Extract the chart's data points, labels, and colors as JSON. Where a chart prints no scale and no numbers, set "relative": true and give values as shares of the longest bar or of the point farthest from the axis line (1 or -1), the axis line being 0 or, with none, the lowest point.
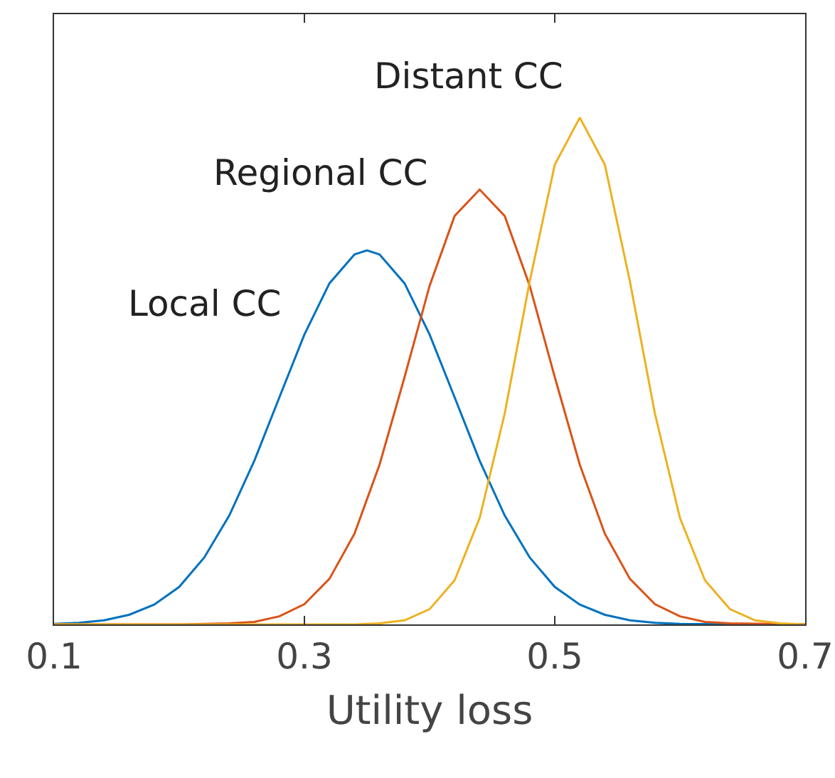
{
  "chart_data": {
    "type": "line",
    "relative": true,
    "xlabel": "Utility loss",
    "xlim": [
      0.1,
      0.7
    ],
    "xticks": [
      0.1,
      0.3,
      0.5,
      0.7
    ],
    "series": [
      {
        "name": "Local CC",
        "color": "#0072bd",
        "x": [
          0.1,
          0.12,
          0.14,
          0.16,
          0.18,
          0.2,
          0.22,
          0.24,
          0.26,
          0.28,
          0.3,
          0.32,
          0.34,
          0.35,
          0.36,
          0.38,
          0.4,
          0.42,
          0.44,
          0.46,
          0.48,
          0.5,
          0.52,
          0.54,
          0.56,
          0.58,
          0.6,
          0.65,
          0.7
        ],
        "values": [
          0.001,
          0.003,
          0.008,
          0.019,
          0.039,
          0.074,
          0.132,
          0.215,
          0.323,
          0.448,
          0.572,
          0.673,
          0.73,
          0.738,
          0.73,
          0.673,
          0.572,
          0.448,
          0.323,
          0.215,
          0.132,
          0.074,
          0.039,
          0.019,
          0.008,
          0.003,
          0.001,
          0,
          0
        ]
      },
      {
        "name": "Regional CC",
        "color": "#d95319",
        "x": [
          0.1,
          0.2,
          0.24,
          0.26,
          0.28,
          0.3,
          0.32,
          0.34,
          0.36,
          0.38,
          0.4,
          0.42,
          0.44,
          0.46,
          0.48,
          0.5,
          0.52,
          0.54,
          0.56,
          0.58,
          0.6,
          0.62,
          0.64,
          0.7
        ],
        "values": [
          0,
          0,
          0.002,
          0.005,
          0.016,
          0.04,
          0.09,
          0.179,
          0.315,
          0.488,
          0.668,
          0.806,
          0.858,
          0.806,
          0.668,
          0.488,
          0.315,
          0.179,
          0.09,
          0.04,
          0.016,
          0.005,
          0.002,
          0
        ]
      },
      {
        "name": "Distant CC",
        "color": "#edb120",
        "x": [
          0.1,
          0.3,
          0.34,
          0.36,
          0.38,
          0.4,
          0.42,
          0.44,
          0.46,
          0.48,
          0.5,
          0.52,
          0.54,
          0.56,
          0.58,
          0.6,
          0.62,
          0.64,
          0.66,
          0.68,
          0.7
        ],
        "values": [
          0,
          0,
          0,
          0.002,
          0.008,
          0.03,
          0.087,
          0.21,
          0.416,
          0.677,
          0.907,
          1,
          0.907,
          0.677,
          0.416,
          0.21,
          0.087,
          0.03,
          0.008,
          0.002,
          0
        ]
      }
    ]
  }
}
